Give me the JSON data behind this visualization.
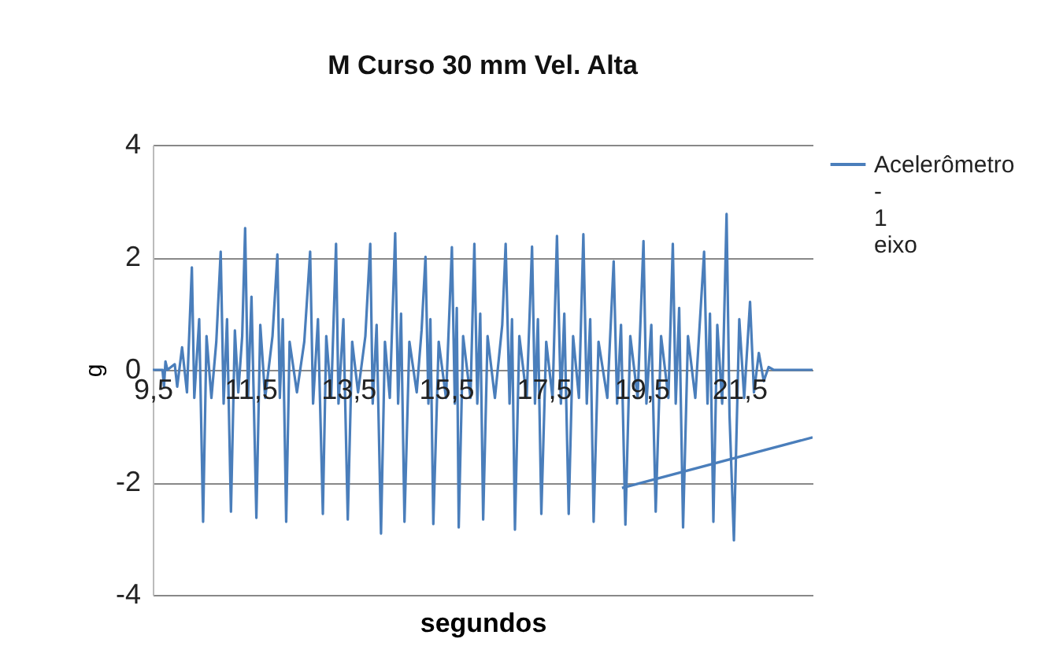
{
  "chart_data": {
    "type": "line",
    "title": "M Curso 30 mm Vel. Alta",
    "xlabel": "segundos",
    "ylabel": "g",
    "xlim": [
      9.5,
      23.0
    ],
    "xticks": [
      {
        "value": 9.5,
        "label": "9,5"
      },
      {
        "value": 11.5,
        "label": "11,5"
      },
      {
        "value": 13.5,
        "label": "13,5"
      },
      {
        "value": 15.5,
        "label": "15,5"
      },
      {
        "value": 17.5,
        "label": "17,5"
      },
      {
        "value": 19.5,
        "label": "19,5"
      },
      {
        "value": 21.5,
        "label": "21,5"
      }
    ],
    "ylim": [
      -4,
      4
    ],
    "yticks": [
      -4,
      -2,
      0,
      2,
      4
    ],
    "grid": "y",
    "legend": "right",
    "line_style": "solid",
    "marker": "none",
    "series": [
      {
        "name": "Acelerômetro - 1 eixo",
        "color": "#4a7ebb",
        "x": [
          9.5,
          9.7,
          9.73,
          9.76,
          9.8,
          9.95,
          10.0,
          10.1,
          10.2,
          10.3,
          10.35,
          10.45,
          10.53,
          10.6,
          10.7,
          10.8,
          10.89,
          10.95,
          11.02,
          11.1,
          11.18,
          11.25,
          11.33,
          11.39,
          11.45,
          11.52,
          11.62,
          11.7,
          11.8,
          11.95,
          12.05,
          12.1,
          12.16,
          12.23,
          12.3,
          12.45,
          12.6,
          12.72,
          12.78,
          12.88,
          12.98,
          13.05,
          13.15,
          13.25,
          13.3,
          13.4,
          13.49,
          13.58,
          13.7,
          13.85,
          13.95,
          14.0,
          14.08,
          14.17,
          14.25,
          14.35,
          14.46,
          14.52,
          14.58,
          14.65,
          14.75,
          14.9,
          15.0,
          15.08,
          15.14,
          15.18,
          15.24,
          15.35,
          15.5,
          15.62,
          15.68,
          15.72,
          15.76,
          15.85,
          16.0,
          16.08,
          16.14,
          16.2,
          16.26,
          16.35,
          16.5,
          16.65,
          16.72,
          16.8,
          16.85,
          16.91,
          17.0,
          17.15,
          17.26,
          17.32,
          17.38,
          17.45,
          17.55,
          17.68,
          17.77,
          17.85,
          17.92,
          18.01,
          18.1,
          18.22,
          18.31,
          18.38,
          18.45,
          18.52,
          18.62,
          18.8,
          18.93,
          19.0,
          19.08,
          19.17,
          19.27,
          19.42,
          19.54,
          19.6,
          19.7,
          19.79,
          19.9,
          20.05,
          20.14,
          20.2,
          20.27,
          20.35,
          20.45,
          20.6,
          20.78,
          20.85,
          20.9,
          20.97,
          21.05,
          21.15,
          21.24,
          21.3,
          21.39,
          21.5,
          21.6,
          21.72,
          21.8,
          21.9,
          22.0,
          22.1,
          22.2,
          23.0
        ],
        "values": [
          0,
          0,
          -0.3,
          0.15,
          0,
          0.1,
          -0.3,
          0.4,
          -0.4,
          1.82,
          -0.5,
          0.9,
          -2.7,
          0.6,
          -0.5,
          0.5,
          2.1,
          -0.6,
          0.9,
          -2.52,
          0.7,
          -0.4,
          0.6,
          2.52,
          -0.5,
          1.3,
          -2.63,
          0.8,
          -0.5,
          0.6,
          2.05,
          -0.5,
          0.9,
          -2.7,
          0.5,
          -0.4,
          0.5,
          2.1,
          -0.6,
          0.9,
          -2.56,
          0.6,
          -0.5,
          2.24,
          -0.6,
          0.9,
          -2.66,
          0.5,
          -0.4,
          0.6,
          2.24,
          -0.6,
          0.8,
          -2.91,
          0.5,
          -0.5,
          2.43,
          -0.6,
          1.0,
          -2.7,
          0.5,
          -0.4,
          0.7,
          2.01,
          -0.6,
          0.9,
          -2.74,
          0.5,
          -0.5,
          2.18,
          -0.6,
          1.1,
          -2.8,
          0.6,
          -0.5,
          2.24,
          -0.6,
          1.0,
          -2.66,
          0.6,
          -0.5,
          0.8,
          2.24,
          -0.6,
          0.9,
          -2.84,
          0.6,
          -0.5,
          2.19,
          -0.6,
          0.9,
          -2.56,
          0.5,
          -0.5,
          2.38,
          -0.6,
          1.0,
          -2.56,
          0.6,
          -0.5,
          2.41,
          -0.6,
          0.9,
          -2.7,
          0.5,
          -0.5,
          1.93,
          -0.6,
          0.8,
          -2.75,
          0.6,
          -0.5,
          2.29,
          -0.6,
          0.8,
          -2.52,
          0.6,
          -0.5,
          2.24,
          -0.6,
          1.1,
          -2.8,
          0.6,
          -0.5,
          2.1,
          -0.6,
          1.0,
          -2.7,
          0.8,
          -0.6,
          2.77,
          -0.8,
          -3.03,
          0.9,
          -0.5,
          1.21,
          -0.4,
          0.3,
          -0.2,
          0.05,
          0,
          0
        ]
      },
      {
        "color": "#4a7ebb",
        "x": [
          19.1,
          23.0
        ],
        "values": [
          -2.1,
          -1.2
        ]
      }
    ]
  }
}
